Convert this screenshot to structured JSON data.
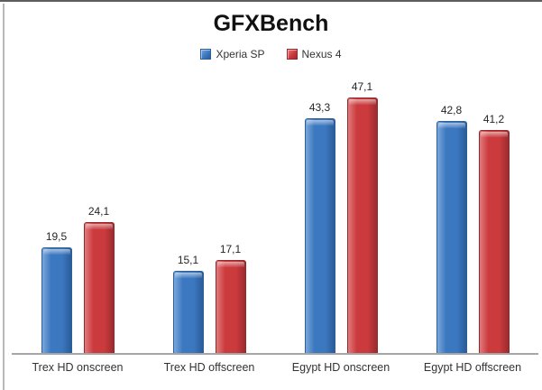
{
  "chart_data": {
    "type": "bar",
    "title": "GFXBench",
    "categories": [
      "Trex HD onscreen",
      "Trex HD offscreen",
      "Egypt HD onscreen",
      "Egypt HD offscreen"
    ],
    "series": [
      {
        "name": "Xperia SP",
        "values": [
          19.5,
          15.1,
          43.3,
          42.8
        ],
        "labels": [
          "19,5",
          "15,1",
          "43,3",
          "42,8"
        ],
        "color": "#3c78c0",
        "color_light": "#7aa7da",
        "color_dark": "#2a5c99",
        "color_border": "#2d5f9b"
      },
      {
        "name": "Nexus 4",
        "values": [
          24.1,
          17.1,
          47.1,
          41.2
        ],
        "labels": [
          "24,1",
          "17,1",
          "47,1",
          "41,2"
        ],
        "color": "#cb3a3d",
        "color_light": "#e07a7c",
        "color_dark": "#9c2b2d",
        "color_border": "#93292b"
      }
    ],
    "ylim": [
      0,
      52
    ],
    "grid": false,
    "legend_position": "top",
    "value_labels": true,
    "axis_line_color": "#a6a6a6"
  }
}
